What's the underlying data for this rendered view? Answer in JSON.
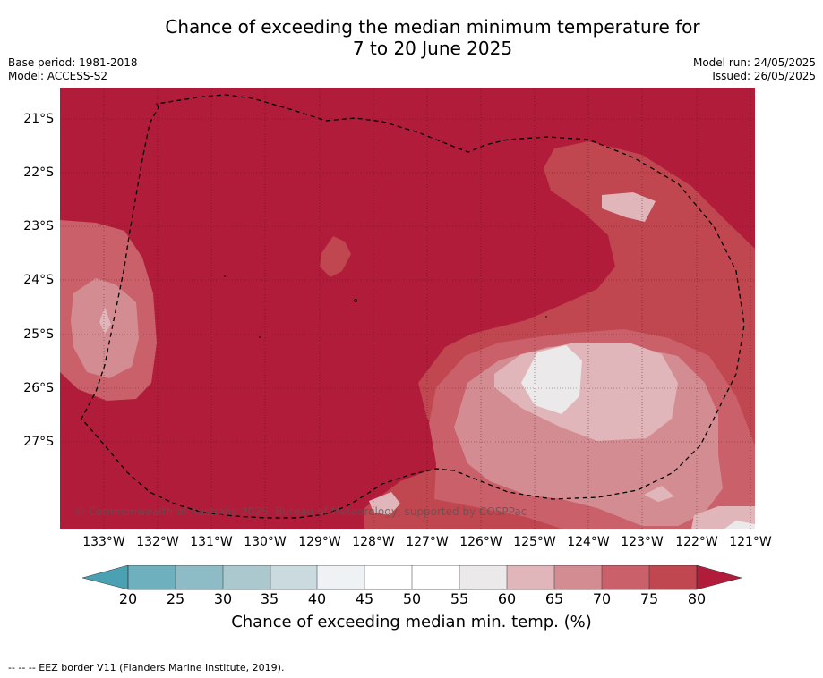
{
  "header": {
    "title_line1": "Chance of exceeding the median minimum temperature for",
    "title_line2": "7 to 20 June 2025",
    "base_period": "Base period: 1981-2018",
    "model": "Model: ACCESS-S2",
    "model_run": "Model run: 24/05/2025",
    "issued": "Issued: 26/05/2025"
  },
  "map": {
    "copyright": "© Commonwealth of Australia 2025, Bureau of Meteorology, supported by COSPPac",
    "lat_labels": [
      "21°S",
      "22°S",
      "23°S",
      "24°S",
      "25°S",
      "26°S",
      "27°S"
    ],
    "lon_labels": [
      "133°W",
      "132°W",
      "131°W",
      "130°W",
      "129°W",
      "128°W",
      "127°W",
      "126°W",
      "125°W",
      "124°W",
      "123°W",
      "122°W",
      "121°W"
    ],
    "colors": {
      "over80": "#b11c3a",
      "75_80": "#c0464f",
      "70_75": "#c9606a",
      "65_70": "#d48c93",
      "60_65": "#e0b6ba",
      "55_60": "#ebe9e9"
    }
  },
  "colorbar": {
    "ticks": [
      "20",
      "25",
      "30",
      "35",
      "40",
      "45",
      "50",
      "55",
      "60",
      "65",
      "70",
      "75",
      "80"
    ],
    "label": "Chance of exceeding median min. temp. (%)",
    "colors": [
      "#4aa1b3",
      "#6fb0be",
      "#8ebcc6",
      "#aac8ce",
      "#cbdade",
      "#eef2f4",
      "#ffffff",
      "#ffffff",
      "#ebe9e9",
      "#e0b6ba",
      "#d48c93",
      "#c9606a",
      "#c0464f",
      "#b11c3a"
    ]
  },
  "footer": {
    "legend": "--  --  -- EEZ border V11 (Flanders Marine Institute, 2019)."
  }
}
